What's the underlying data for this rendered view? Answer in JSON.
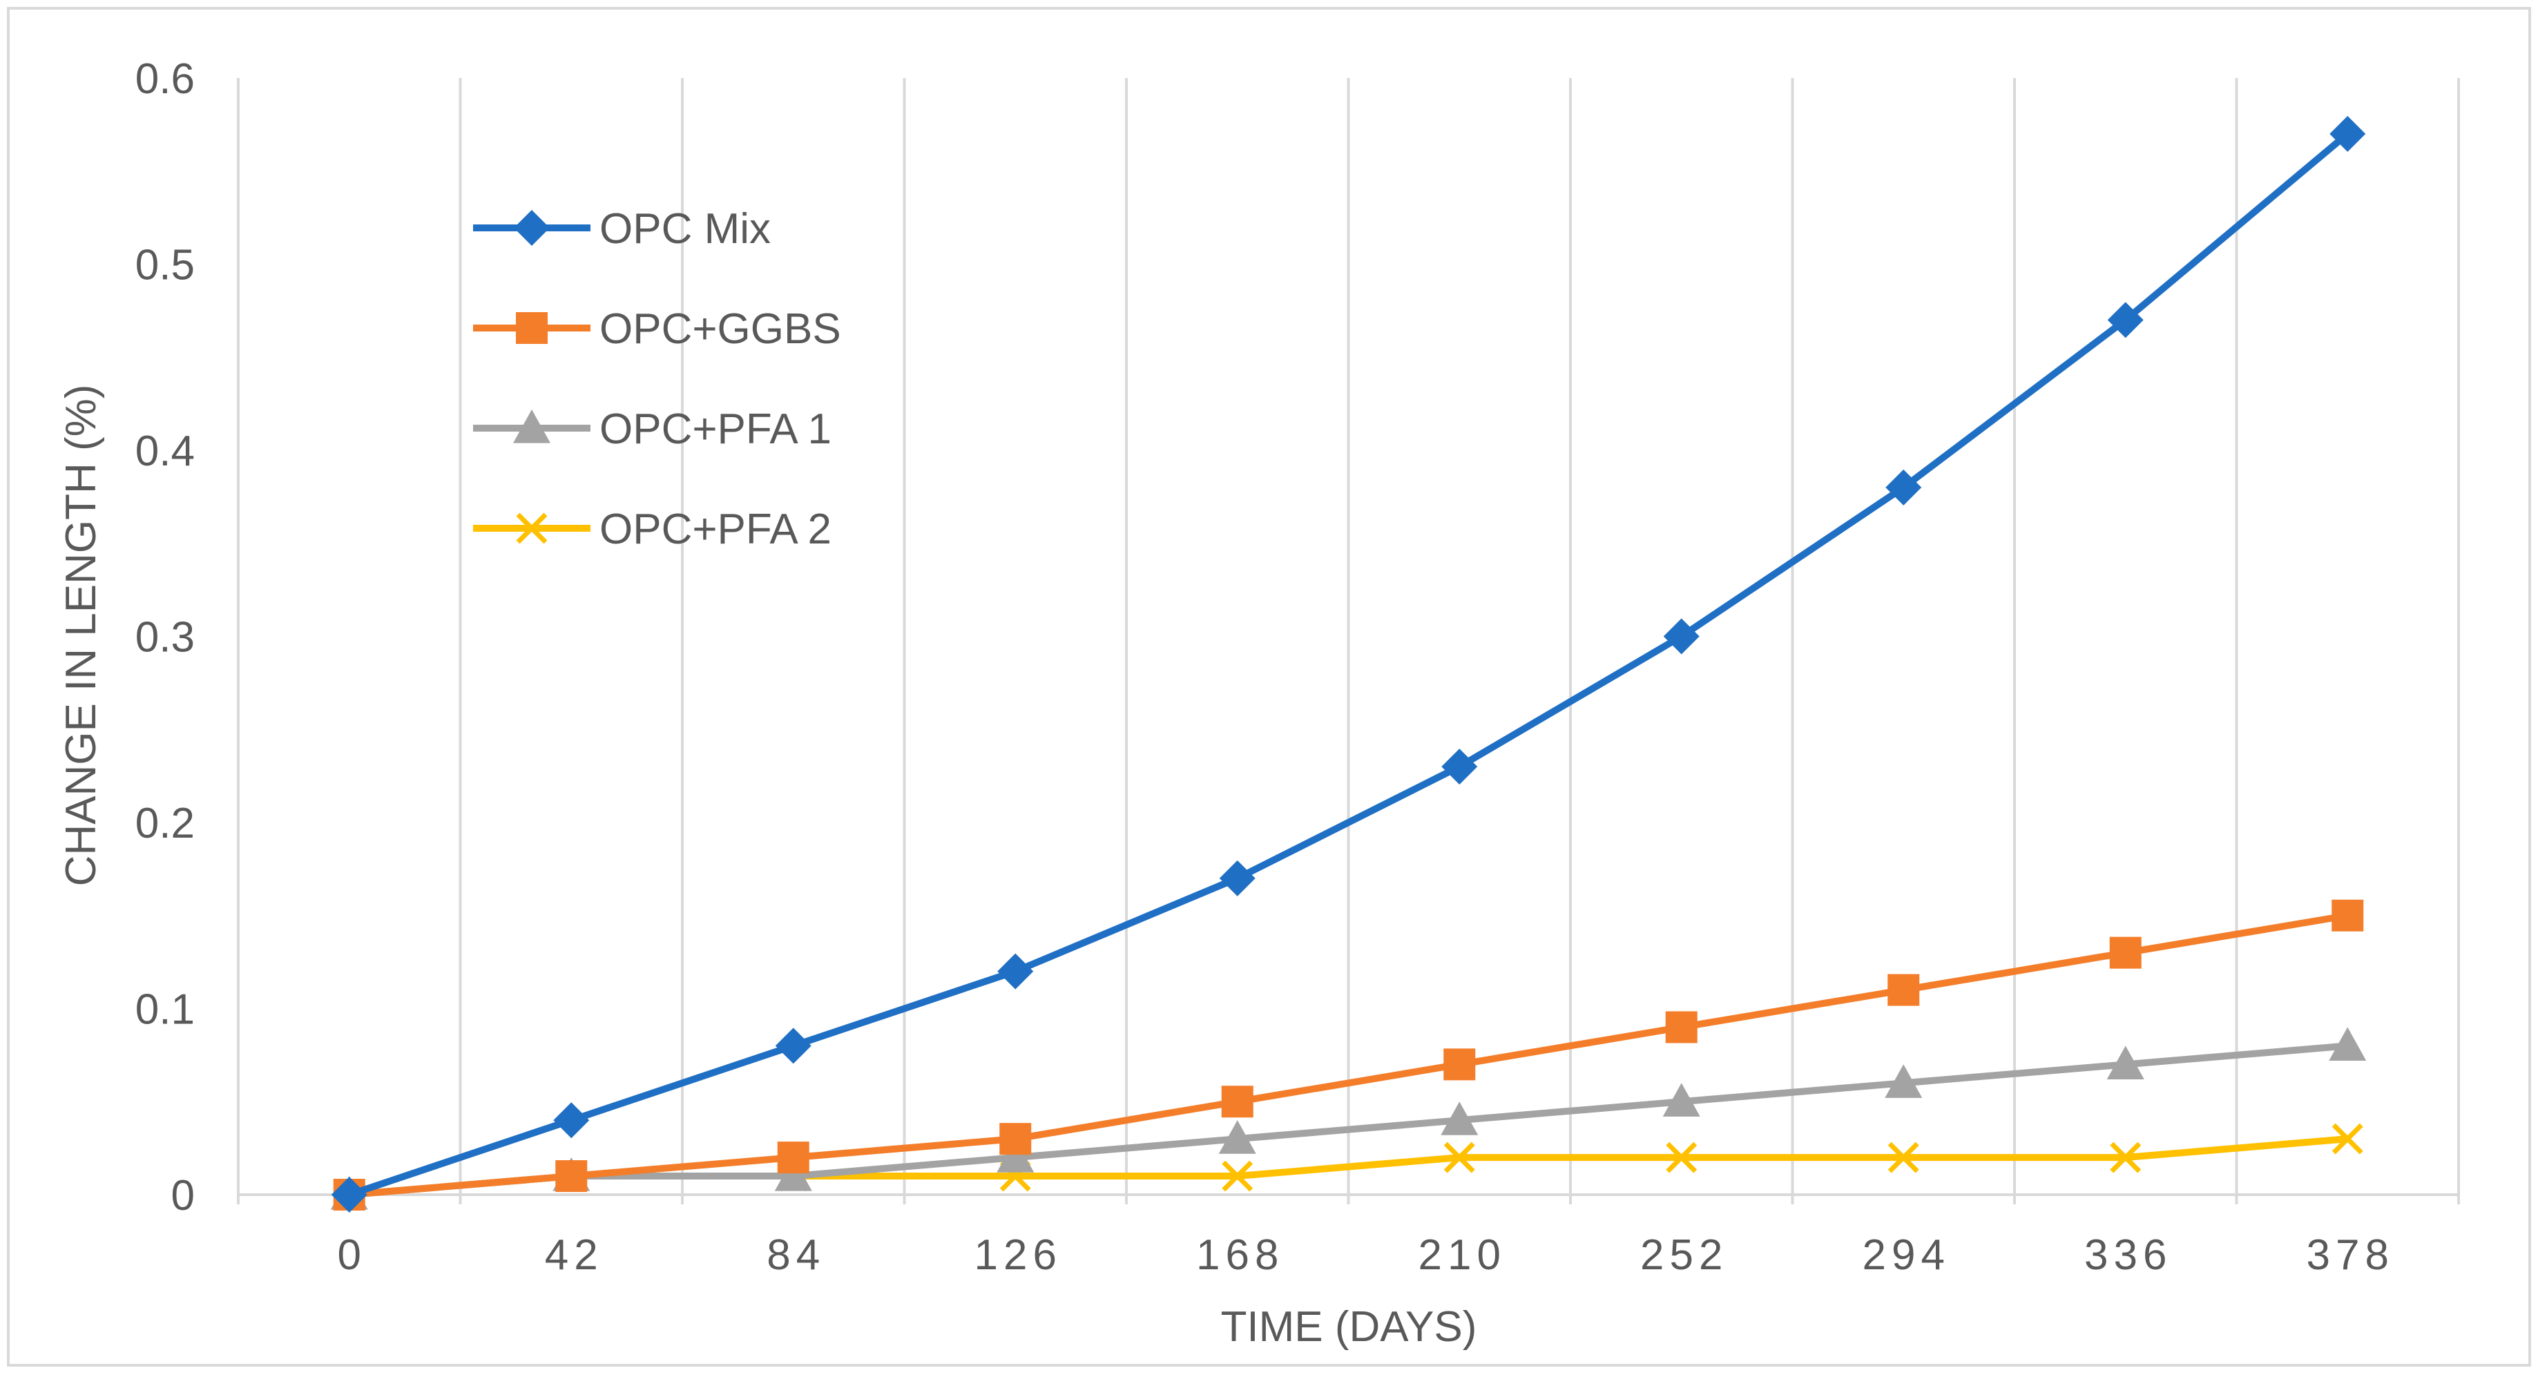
{
  "chart_data": {
    "type": "line",
    "title": "",
    "xlabel": "TIME (DAYS)",
    "ylabel": "CHANGE IN LENGTH (%)",
    "x": [
      0,
      42,
      84,
      126,
      168,
      210,
      252,
      294,
      336,
      378
    ],
    "x_tick_labels": [
      "0",
      "42",
      "84",
      "126",
      "168",
      "210",
      "252",
      "294",
      "336",
      "378"
    ],
    "ylim": [
      0,
      0.6
    ],
    "y_ticks": [
      0,
      0.1,
      0.2,
      0.3,
      0.4,
      0.5,
      0.6
    ],
    "y_tick_labels": [
      "0",
      "0.1",
      "0.2",
      "0.3",
      "0.4",
      "0.5",
      "0.6"
    ],
    "grid": "vertical",
    "legend_position": "top-left",
    "series": [
      {
        "name": "OPC Mix",
        "color": "#1F6FC4",
        "marker": "diamond",
        "values": [
          0,
          0.04,
          0.08,
          0.12,
          0.17,
          0.23,
          0.3,
          0.38,
          0.47,
          0.57
        ]
      },
      {
        "name": "OPC+GGBS",
        "color": "#F47D2A",
        "marker": "square",
        "values": [
          0,
          0.01,
          0.02,
          0.03,
          0.05,
          0.07,
          0.09,
          0.11,
          0.13,
          0.15
        ]
      },
      {
        "name": "OPC+PFA 1",
        "color": "#A3A3A3",
        "marker": "triangle",
        "values": [
          0,
          0.01,
          0.01,
          0.02,
          0.03,
          0.04,
          0.05,
          0.06,
          0.07,
          0.08
        ]
      },
      {
        "name": "OPC+PFA 2",
        "color": "#FFC000",
        "marker": "x",
        "values": [
          0,
          0.01,
          0.01,
          0.01,
          0.01,
          0.02,
          0.02,
          0.02,
          0.02,
          0.03
        ]
      }
    ]
  }
}
